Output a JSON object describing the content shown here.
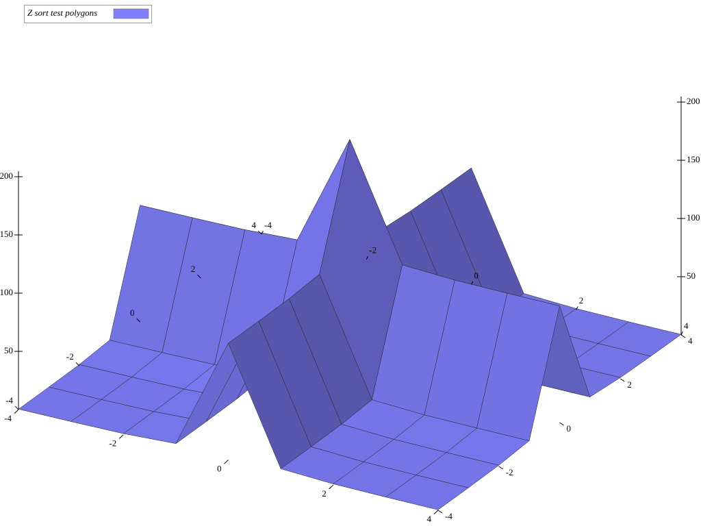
{
  "chart_data": {
    "type": "surface",
    "series": [
      {
        "name": "Z sort test polygons",
        "color": "#8080ff",
        "z": [
          [
            0.4,
            0.5,
            1,
            3.2,
            100.2,
            3.2,
            1,
            0.5,
            0.4
          ],
          [
            0.5,
            0.6,
            1.1,
            3.3,
            100.3,
            3.3,
            1.1,
            0.6,
            0.5
          ],
          [
            1,
            1.1,
            1.6,
            3.8,
            100.8,
            3.8,
            1.6,
            1.1,
            1
          ],
          [
            3.2,
            3.3,
            3.8,
            6,
            103,
            6,
            3.8,
            3.3,
            3.2
          ],
          [
            100.2,
            100.3,
            100.8,
            103,
            200,
            103,
            100.8,
            100.3,
            100.2
          ],
          [
            3.2,
            3.3,
            3.8,
            6,
            103,
            6,
            3.8,
            3.3,
            3.2
          ],
          [
            1,
            1.1,
            1.6,
            3.8,
            100.8,
            3.8,
            1.6,
            1.1,
            1
          ],
          [
            0.5,
            0.6,
            1.1,
            3.3,
            100.3,
            3.3,
            1.1,
            0.6,
            0.5
          ],
          [
            0.4,
            0.5,
            1,
            3.2,
            100.2,
            3.2,
            1,
            0.5,
            0.4
          ]
        ]
      }
    ],
    "x": [
      -4,
      -3,
      -2,
      -1,
      0,
      1,
      2,
      3,
      4
    ],
    "y": [
      -4,
      -3,
      -2,
      -1,
      0,
      1,
      2,
      3,
      4
    ],
    "xlim": [
      -4,
      4
    ],
    "ylim": [
      -4,
      4
    ],
    "zlim": [
      0,
      200
    ],
    "xticks": [
      -4,
      -2,
      0,
      2,
      4
    ],
    "yticks": [
      -4,
      -2,
      0,
      2,
      4
    ],
    "zticks": [
      50,
      100,
      150,
      200
    ]
  }
}
